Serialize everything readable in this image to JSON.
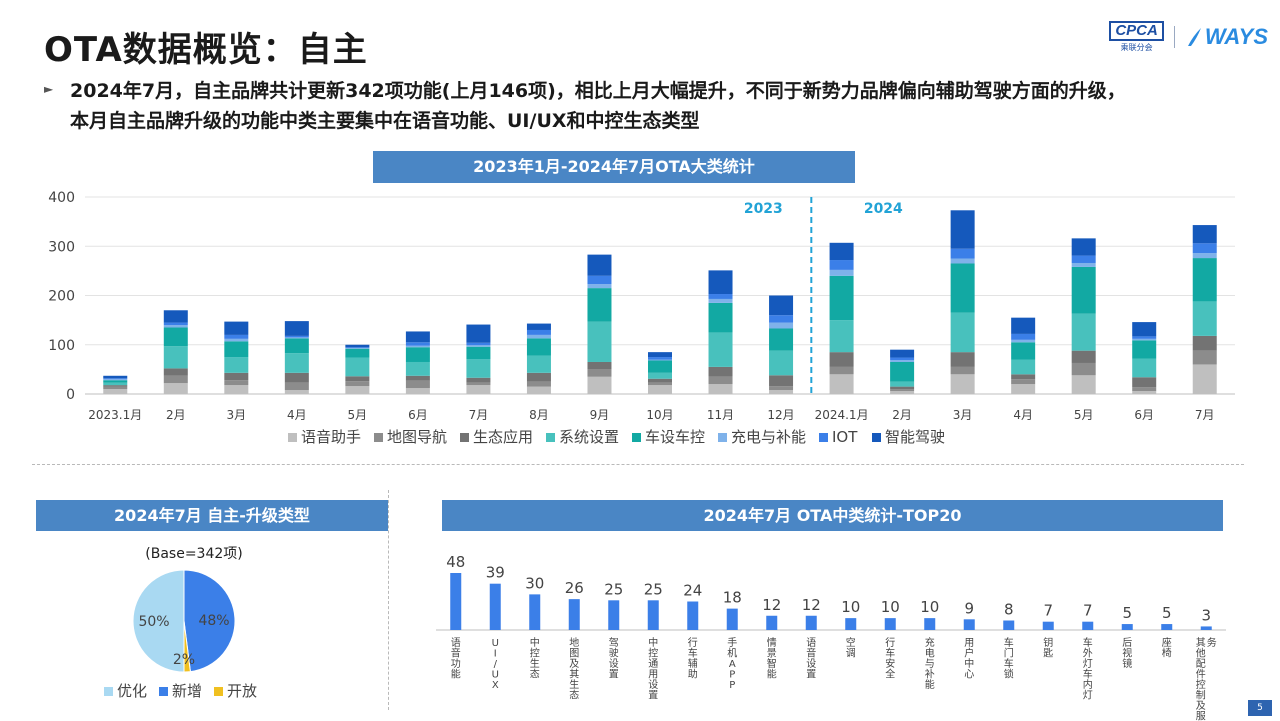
{
  "page": {
    "title": "OTA数据概览：自主",
    "bullet": "2024年7月，自主品牌共计更新342项功能(上月146项)，相比上月大幅提升，不同于新势力品牌偏向辅助驾驶方面的升级，本月自主品牌升级的功能中类主要集中在语音功能、UI/UX和中控生态类型",
    "bullet_line1": "2024年7月，自主品牌共计更新342项功能(上月146项)，相比上月大幅提升，不同于新势力品牌偏向辅助驾驶方面的升级，",
    "bullet_line2": "本月自主品牌升级的功能中类主要集中在语音功能、UI/UX和中控生态类型",
    "page_number": "5"
  },
  "logos": {
    "cpca_main": "CPCA",
    "cpca_sub": "乘联分会",
    "ways": "WAYS"
  },
  "colors": {
    "header_blue": "#4a86c5",
    "series": [
      "#bfbfbf",
      "#8c8c8c",
      "#737373",
      "#48c1bd",
      "#12a9a3",
      "#7fb2ea",
      "#3b7fe8",
      "#1559bc"
    ],
    "pie": [
      "#a9d9f2",
      "#3b7fe8",
      "#f0c020"
    ],
    "bar2": "#3b7fe8"
  },
  "chart_data": [
    {
      "type": "bar",
      "stacked": true,
      "title": "2023年1月-2024年7月OTA大类统计",
      "annotations": [
        "2023",
        "2024"
      ],
      "categories": [
        "2023.1月",
        "2月",
        "3月",
        "4月",
        "5月",
        "6月",
        "7月",
        "8月",
        "9月",
        "10月",
        "11月",
        "12月",
        "2024.1月",
        "2月",
        "3月",
        "4月",
        "5月",
        "6月",
        "7月"
      ],
      "ylim": [
        0,
        400
      ],
      "yticks": [
        0,
        100,
        200,
        300,
        400
      ],
      "legend_position": "bottom",
      "series": [
        {
          "name": "语音助手",
          "values": [
            10,
            22,
            18,
            8,
            16,
            12,
            18,
            15,
            35,
            18,
            20,
            8,
            40,
            6,
            40,
            20,
            38,
            6,
            60
          ]
        },
        {
          "name": "地图导航",
          "values": [
            5,
            15,
            10,
            15,
            10,
            15,
            5,
            10,
            15,
            5,
            15,
            8,
            15,
            4,
            15,
            10,
            25,
            8,
            28
          ]
        },
        {
          "name": "生态应用",
          "values": [
            3,
            15,
            15,
            20,
            10,
            10,
            10,
            18,
            15,
            8,
            20,
            22,
            30,
            5,
            30,
            10,
            25,
            20,
            30
          ]
        },
        {
          "name": "系统设置",
          "values": [
            5,
            45,
            32,
            40,
            38,
            28,
            38,
            35,
            82,
            12,
            70,
            50,
            65,
            10,
            80,
            30,
            75,
            38,
            70
          ]
        },
        {
          "name": "车设车控",
          "values": [
            5,
            38,
            32,
            30,
            18,
            30,
            25,
            35,
            68,
            25,
            60,
            45,
            90,
            40,
            100,
            35,
            95,
            37,
            88
          ]
        },
        {
          "name": "充电与补能",
          "values": [
            2,
            5,
            5,
            2,
            1,
            3,
            3,
            7,
            8,
            2,
            8,
            12,
            12,
            4,
            10,
            5,
            8,
            3,
            10
          ]
        },
        {
          "name": "IOT",
          "values": [
            2,
            5,
            8,
            3,
            2,
            7,
            5,
            10,
            17,
            5,
            10,
            15,
            20,
            5,
            20,
            12,
            15,
            5,
            20
          ]
        },
        {
          "name": "智能驾驶",
          "values": [
            5,
            25,
            27,
            30,
            5,
            22,
            37,
            13,
            43,
            10,
            48,
            40,
            35,
            16,
            78,
            33,
            35,
            29,
            37
          ]
        }
      ]
    },
    {
      "type": "pie",
      "title": "2024年7月 自主-升级类型",
      "base_label": "(Base=342项)",
      "slices": [
        {
          "name": "优化",
          "value": 50,
          "label": "50%"
        },
        {
          "name": "新增",
          "value": 48,
          "label": "48%"
        },
        {
          "name": "开放",
          "value": 2,
          "label": "2%"
        }
      ]
    },
    {
      "type": "bar",
      "title": "2024年7月 OTA中类统计-TOP20",
      "categories": [
        "语音功能",
        "UI/UX",
        "中控生态",
        "地图及其生态",
        "驾驶设置",
        "中控通用设置",
        "行车辅助",
        "手机APP",
        "情景智能",
        "语音设置",
        "空调",
        "行车安全",
        "充电与补能",
        "用户中心",
        "车门车锁",
        "钥匙",
        "车外灯车内灯",
        "后视镜",
        "座椅",
        "其他配件控制及服务"
      ],
      "values": [
        48,
        39,
        30,
        26,
        25,
        25,
        24,
        18,
        12,
        12,
        10,
        10,
        10,
        9,
        8,
        7,
        7,
        5,
        5,
        3
      ]
    }
  ]
}
